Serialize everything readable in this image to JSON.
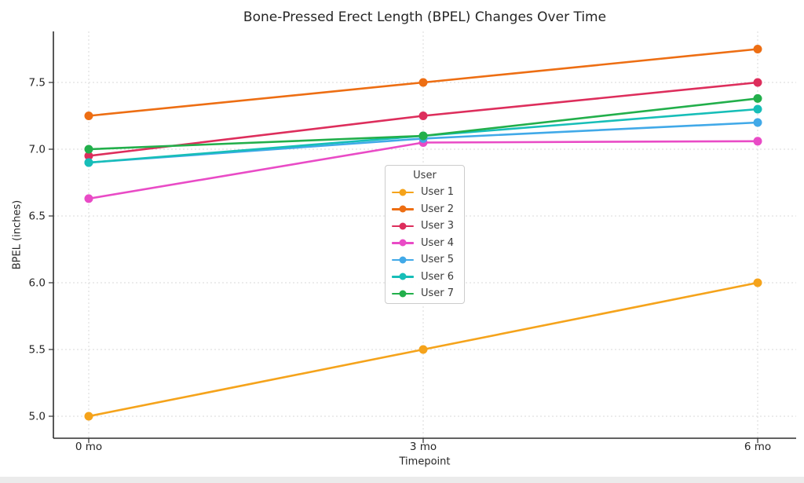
{
  "chart_data": {
    "type": "line",
    "title": "Bone-Pressed Erect Length (BPEL) Changes Over Time",
    "xlabel": "Timepoint",
    "ylabel": "BPEL (inches)",
    "categories": [
      "0 mo",
      "3 mo",
      "6 mo"
    ],
    "y_tick_labels": [
      "5.0",
      "5.5",
      "6.0",
      "6.5",
      "7.0",
      "7.5"
    ],
    "y_ticks": [
      5.0,
      5.5,
      6.0,
      6.5,
      7.0,
      7.5
    ],
    "ylim": [
      4.85,
      7.9
    ],
    "grid": "dashed light-gray, both axes",
    "legend": {
      "title": "User",
      "position": "inside plot, upper-center-left"
    },
    "series": [
      {
        "name": "User 1",
        "color": "#F5A31B",
        "values": [
          5.0,
          5.5,
          6.0
        ]
      },
      {
        "name": "User 2",
        "color": "#ED6E13",
        "values": [
          7.25,
          7.5,
          7.75
        ]
      },
      {
        "name": "User 3",
        "color": "#DD2E5C",
        "values": [
          6.95,
          7.25,
          7.5
        ]
      },
      {
        "name": "User 4",
        "color": "#E94BC6",
        "values": [
          6.63,
          7.05,
          7.06
        ]
      },
      {
        "name": "User 5",
        "color": "#41A9E8",
        "values": [
          6.9,
          7.08,
          7.2
        ]
      },
      {
        "name": "User 6",
        "color": "#17BEB8",
        "values": [
          6.9,
          7.1,
          7.3
        ]
      },
      {
        "name": "User 7",
        "color": "#22AF4B",
        "values": [
          7.0,
          7.1,
          7.38
        ]
      }
    ]
  },
  "style_colors": {
    "grid_line": "#d9d9d9",
    "spine": "#2e2e2e",
    "tick_label": "#262626",
    "bottom_strip": "#ebebeb"
  }
}
